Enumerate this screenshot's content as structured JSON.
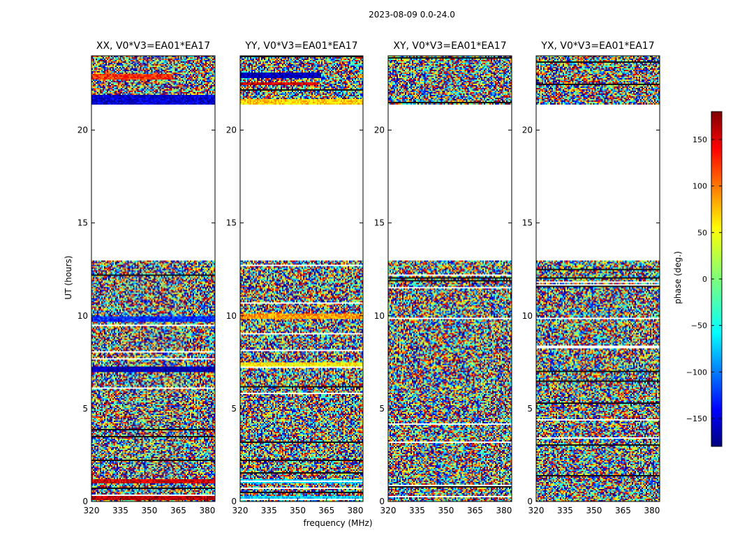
{
  "suptitle": "2023-08-09 0.0-24.0",
  "chart_data": [
    {
      "type": "heatmap",
      "title": "XX, V0*V3=EA01*EA17",
      "xlabel": "",
      "ylabel": "UT (hours)",
      "xlim": [
        320,
        384
      ],
      "ylim": [
        0,
        24
      ],
      "xticks": [
        320,
        335,
        350,
        365,
        380
      ],
      "yticks": [
        0,
        5,
        10,
        15,
        20
      ],
      "data_gaps_ut": [
        [
          13.0,
          21.4
        ]
      ],
      "coherent_bands": [
        {
          "ut": [
            22.7,
            23.0
          ],
          "freq": [
            320,
            362
          ],
          "phase_deg": 120
        },
        {
          "ut": [
            21.4,
            21.9
          ],
          "freq": [
            320,
            384
          ],
          "phase_deg": -150
        },
        {
          "ut": [
            9.7,
            10.0
          ],
          "freq": [
            320,
            384
          ],
          "phase_deg": -120
        },
        {
          "ut": [
            7.0,
            7.3
          ],
          "freq": [
            320,
            384
          ],
          "phase_deg": -160
        },
        {
          "ut": [
            1.0,
            1.2
          ],
          "freq": [
            320,
            384
          ],
          "phase_deg": 150
        },
        {
          "ut": [
            0.05,
            0.35
          ],
          "freq": [
            320,
            384
          ],
          "phase_deg": 160
        }
      ]
    },
    {
      "type": "heatmap",
      "title": "YY, V0*V3=EA01*EA17",
      "xlabel": "frequency (MHz)",
      "xlim": [
        320,
        384
      ],
      "ylim": [
        0,
        24
      ],
      "xticks": [
        320,
        335,
        350,
        365,
        380
      ],
      "yticks": [
        0,
        5,
        10,
        15,
        20
      ],
      "data_gaps_ut": [
        [
          13.0,
          21.4
        ]
      ],
      "coherent_bands": [
        {
          "ut": [
            22.8,
            23.1
          ],
          "freq": [
            320,
            362
          ],
          "phase_deg": -160
        },
        {
          "ut": [
            22.4,
            22.6
          ],
          "freq": [
            320,
            360
          ],
          "phase_deg": 150
        },
        {
          "ut": [
            21.4,
            21.7
          ],
          "freq": [
            320,
            384
          ],
          "phase_deg": 60
        },
        {
          "ut": [
            9.8,
            10.1
          ],
          "freq": [
            320,
            384
          ],
          "phase_deg": 80
        },
        {
          "ut": [
            7.2,
            7.5
          ],
          "freq": [
            320,
            384
          ],
          "phase_deg": 50
        },
        {
          "ut": [
            1.0,
            1.2
          ],
          "freq": [
            320,
            384
          ],
          "phase_deg": -60
        },
        {
          "ut": [
            0.05,
            0.3
          ],
          "freq": [
            320,
            384
          ],
          "phase_deg": -60
        }
      ]
    },
    {
      "type": "heatmap",
      "title": "XY, V0*V3=EA01*EA17",
      "xlabel": "",
      "xlim": [
        320,
        384
      ],
      "ylim": [
        0,
        24
      ],
      "xticks": [
        320,
        335,
        350,
        365,
        380
      ],
      "yticks": [
        0,
        5,
        10,
        15,
        20
      ],
      "data_gaps_ut": [
        [
          13.0,
          21.4
        ]
      ],
      "coherent_bands": []
    },
    {
      "type": "heatmap",
      "title": "YX, V0*V3=EA01*EA17",
      "xlabel": "",
      "xlim": [
        320,
        384
      ],
      "ylim": [
        0,
        24
      ],
      "xticks": [
        320,
        335,
        350,
        365,
        380
      ],
      "yticks": [
        0,
        5,
        10,
        15,
        20
      ],
      "data_gaps_ut": [
        [
          13.0,
          21.4
        ]
      ],
      "coherent_bands": []
    }
  ],
  "colorbar": {
    "label": "phase (deg.)",
    "vmin": -180,
    "vmax": 180,
    "ticks": [
      150,
      100,
      50,
      0,
      -50,
      -100,
      -150
    ],
    "tick_labels": [
      "150",
      "100",
      "50",
      "0",
      "−50",
      "−100",
      "−150"
    ]
  }
}
